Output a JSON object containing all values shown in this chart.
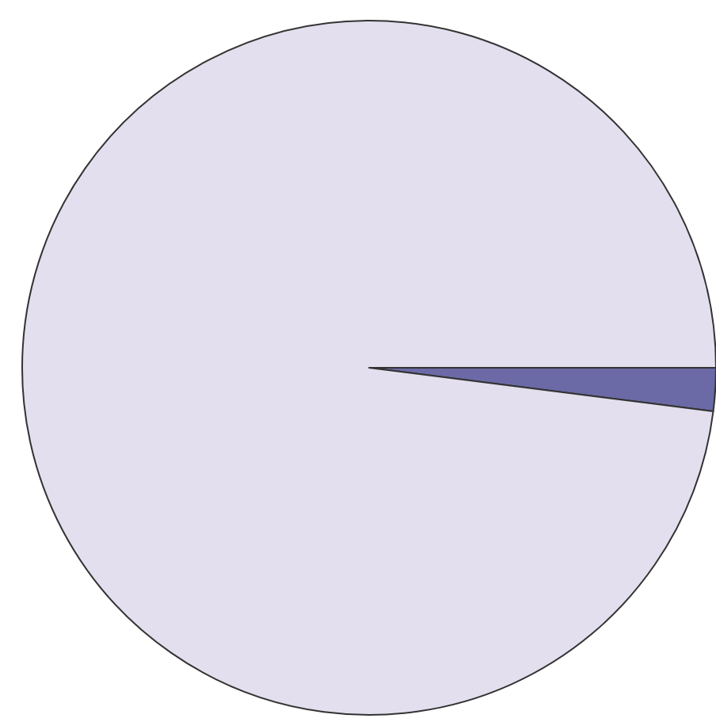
{
  "chart_data": {
    "type": "pie",
    "categories": [
      null,
      null
    ],
    "values": [
      2,
      98
    ],
    "colors": [
      "#6b6aa6",
      "#e3dfee"
    ],
    "legend": false
  }
}
